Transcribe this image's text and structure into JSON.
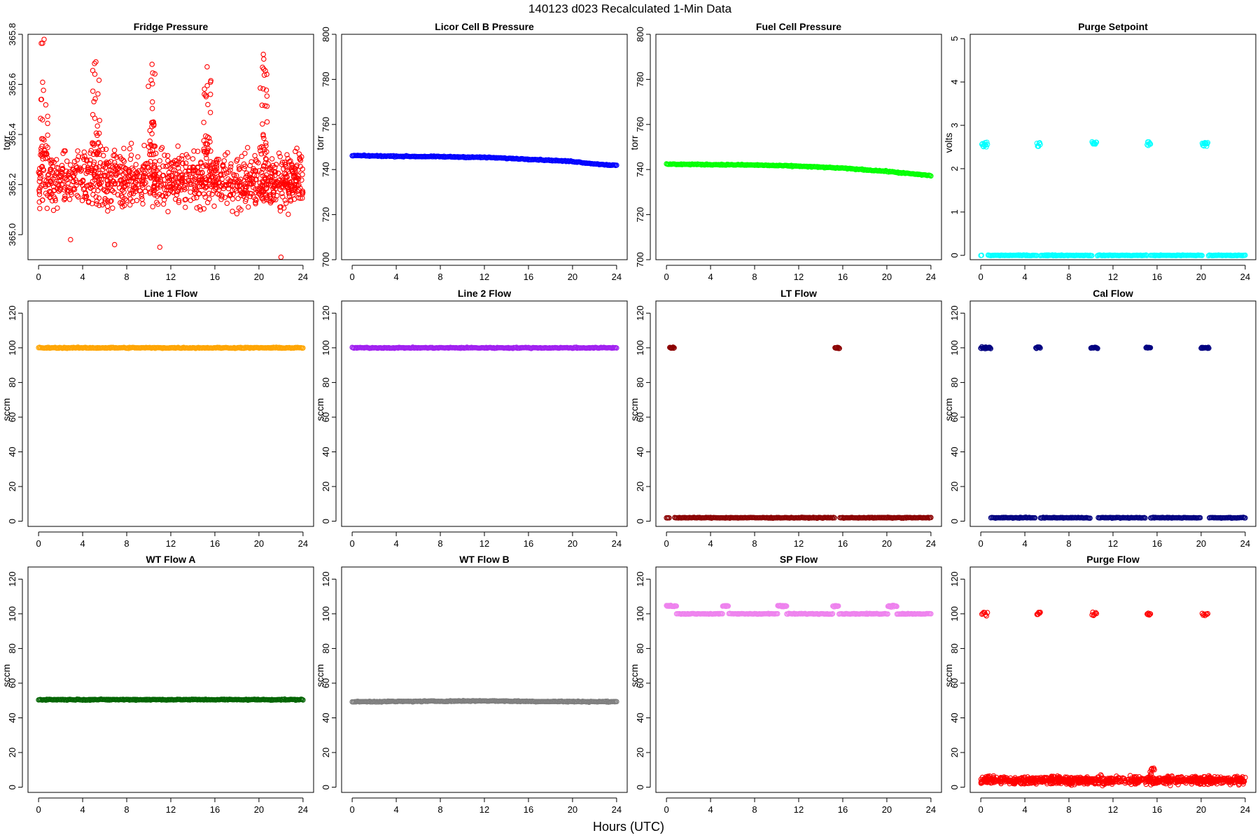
{
  "figure": {
    "title": "140123    d023    Recalculated 1-Min Data",
    "xlabel": "Hours (UTC)"
  },
  "chart_data": [
    {
      "type": "scatter",
      "title": "Fridge Pressure",
      "ylabel": "torr",
      "color": "#ff0000",
      "style": "noise",
      "xlim": [
        0,
        24
      ],
      "xticks": [
        0,
        4,
        8,
        12,
        16,
        20,
        24
      ],
      "ylim": [
        364.9,
        365.8
      ],
      "yticks": [
        365.0,
        365.2,
        365.4,
        365.6,
        365.8
      ],
      "ytick_labels": [
        "365.0",
        "365.2",
        "365.4",
        "365.6",
        "365.8"
      ],
      "base": 365.22,
      "spread": 0.1,
      "peaks": [
        {
          "x": 0.5,
          "y": 365.78
        },
        {
          "x": 5.2,
          "y": 365.69
        },
        {
          "x": 10.3,
          "y": 365.68
        },
        {
          "x": 15.3,
          "y": 365.67
        },
        {
          "x": 20.4,
          "y": 365.72
        }
      ],
      "outliers": [
        {
          "x": 22.0,
          "y": 364.91
        },
        {
          "x": 11.0,
          "y": 364.95
        },
        {
          "x": 6.9,
          "y": 364.96
        },
        {
          "x": 2.9,
          "y": 364.98
        }
      ]
    },
    {
      "type": "scatter",
      "title": "Licor Cell B Pressure",
      "ylabel": "torr",
      "color": "#0000ff",
      "style": "line",
      "xlim": [
        0,
        24
      ],
      "xticks": [
        0,
        4,
        8,
        12,
        16,
        20,
        24
      ],
      "ylim": [
        700,
        800
      ],
      "yticks": [
        700,
        720,
        740,
        760,
        780,
        800
      ],
      "ytick_labels": [
        "700",
        "720",
        "740",
        "760",
        "780",
        "800"
      ],
      "x": [
        0,
        4,
        8,
        12,
        16,
        20,
        22,
        24
      ],
      "y": [
        746.2,
        745.9,
        745.7,
        745.4,
        744.6,
        743.6,
        742.5,
        741.8
      ]
    },
    {
      "type": "scatter",
      "title": "Fuel Cell Pressure",
      "ylabel": "torr",
      "color": "#00ff00",
      "style": "line",
      "xlim": [
        0,
        24
      ],
      "xticks": [
        0,
        4,
        8,
        12,
        16,
        20,
        24
      ],
      "ylim": [
        700,
        800
      ],
      "yticks": [
        700,
        720,
        740,
        760,
        780,
        800
      ],
      "ytick_labels": [
        "700",
        "720",
        "740",
        "760",
        "780",
        "800"
      ],
      "x": [
        0,
        4,
        8,
        12,
        16,
        20,
        22,
        24
      ],
      "y": [
        742.4,
        742.2,
        742.0,
        741.5,
        740.6,
        739.2,
        738.2,
        737.3
      ]
    },
    {
      "type": "scatter",
      "title": "Purge Setpoint",
      "ylabel": "volts",
      "color": "#00ffff",
      "style": "base_spikes",
      "xlim": [
        0,
        24
      ],
      "xticks": [
        0,
        4,
        8,
        12,
        16,
        20,
        24
      ],
      "ylim": [
        -0.1,
        5.1
      ],
      "yticks": [
        0,
        1,
        2,
        3,
        4,
        5
      ],
      "ytick_labels": [
        "0",
        "1",
        "2",
        "3",
        "4",
        "5"
      ],
      "base": 0,
      "spike_value": 2.57,
      "spike_spread": 0.05,
      "spike_ranges": [
        [
          0.1,
          0.6
        ],
        [
          5.1,
          5.4
        ],
        [
          10.1,
          10.5
        ],
        [
          15.1,
          15.4
        ],
        [
          20.1,
          20.6
        ]
      ]
    },
    {
      "type": "scatter",
      "title": "Line 1 Flow",
      "ylabel": "sccm",
      "color": "#ffa500",
      "style": "line",
      "xlim": [
        0,
        24
      ],
      "xticks": [
        0,
        4,
        8,
        12,
        16,
        20,
        24
      ],
      "ylim": [
        -3,
        127
      ],
      "yticks": [
        0,
        20,
        40,
        60,
        80,
        100,
        120
      ],
      "ytick_labels": [
        "0",
        "20",
        "40",
        "60",
        "80",
        "100",
        "120"
      ],
      "x": [
        0,
        24
      ],
      "y": [
        100,
        100
      ]
    },
    {
      "type": "scatter",
      "title": "Line 2 Flow",
      "ylabel": "sccm",
      "color": "#a020f0",
      "style": "line",
      "xlim": [
        0,
        24
      ],
      "xticks": [
        0,
        4,
        8,
        12,
        16,
        20,
        24
      ],
      "ylim": [
        -3,
        127
      ],
      "yticks": [
        0,
        20,
        40,
        60,
        80,
        100,
        120
      ],
      "ytick_labels": [
        "0",
        "20",
        "40",
        "60",
        "80",
        "100",
        "120"
      ],
      "x": [
        0,
        24
      ],
      "y": [
        100,
        100
      ]
    },
    {
      "type": "scatter",
      "title": "LT Flow",
      "ylabel": "sccm",
      "color": "#8b0000",
      "style": "base_spikes",
      "xlim": [
        0,
        24
      ],
      "xticks": [
        0,
        4,
        8,
        12,
        16,
        20,
        24
      ],
      "ylim": [
        -3,
        127
      ],
      "yticks": [
        0,
        20,
        40,
        60,
        80,
        100,
        120
      ],
      "ytick_labels": [
        "0",
        "20",
        "40",
        "60",
        "80",
        "100",
        "120"
      ],
      "base": 2,
      "spike_value": 100,
      "spike_spread": 0.3,
      "spike_ranges": [
        [
          0.3,
          0.7
        ],
        [
          15.3,
          15.7
        ]
      ]
    },
    {
      "type": "scatter",
      "title": "Cal Flow",
      "ylabel": "sccm",
      "color": "#000080",
      "style": "base_spikes",
      "xlim": [
        0,
        24
      ],
      "xticks": [
        0,
        4,
        8,
        12,
        16,
        20,
        24
      ],
      "ylim": [
        -3,
        127
      ],
      "yticks": [
        0,
        20,
        40,
        60,
        80,
        100,
        120
      ],
      "ytick_labels": [
        "0",
        "20",
        "40",
        "60",
        "80",
        "100",
        "120"
      ],
      "base": 2,
      "spike_value": 100,
      "spike_spread": 0.3,
      "spike_ranges": [
        [
          0.0,
          0.9
        ],
        [
          5.0,
          5.4
        ],
        [
          10.0,
          10.6
        ],
        [
          15.0,
          15.4
        ],
        [
          20.0,
          20.7
        ]
      ]
    },
    {
      "type": "scatter",
      "title": "WT Flow A",
      "ylabel": "sccm",
      "color": "#006400",
      "style": "line",
      "xlim": [
        0,
        24
      ],
      "xticks": [
        0,
        4,
        8,
        12,
        16,
        20,
        24
      ],
      "ylim": [
        -3,
        127
      ],
      "yticks": [
        0,
        20,
        40,
        60,
        80,
        100,
        120
      ],
      "ytick_labels": [
        "0",
        "20",
        "40",
        "60",
        "80",
        "100",
        "120"
      ],
      "x": [
        0,
        24
      ],
      "y": [
        50.5,
        50.5
      ]
    },
    {
      "type": "scatter",
      "title": "WT Flow B",
      "ylabel": "sccm",
      "color": "#7f7f7f",
      "style": "line",
      "xlim": [
        0,
        24
      ],
      "xticks": [
        0,
        4,
        8,
        12,
        16,
        20,
        24
      ],
      "ylim": [
        -3,
        127
      ],
      "yticks": [
        0,
        20,
        40,
        60,
        80,
        100,
        120
      ],
      "ytick_labels": [
        "0",
        "20",
        "40",
        "60",
        "80",
        "100",
        "120"
      ],
      "x": [
        0,
        8,
        12,
        16,
        24
      ],
      "y": [
        49.3,
        49.6,
        49.8,
        49.5,
        49.3
      ]
    },
    {
      "type": "scatter",
      "title": "SP Flow",
      "ylabel": "sccm",
      "color": "#ee82ee",
      "style": "base_spikes",
      "xlim": [
        0,
        24
      ],
      "xticks": [
        0,
        4,
        8,
        12,
        16,
        20,
        24
      ],
      "ylim": [
        -3,
        127
      ],
      "yticks": [
        0,
        20,
        40,
        60,
        80,
        100,
        120
      ],
      "ytick_labels": [
        "0",
        "20",
        "40",
        "60",
        "80",
        "100",
        "120"
      ],
      "base": 100,
      "spike_value": 104.5,
      "spike_spread": 0.3,
      "spike_ranges": [
        [
          0.0,
          0.9
        ],
        [
          5.1,
          5.6
        ],
        [
          10.1,
          10.9
        ],
        [
          15.1,
          15.6
        ],
        [
          20.1,
          20.9
        ]
      ]
    },
    {
      "type": "scatter",
      "title": "Purge Flow",
      "ylabel": "sccm",
      "color": "#ff0000",
      "style": "noise_spikes",
      "xlim": [
        0,
        24
      ],
      "xticks": [
        0,
        4,
        8,
        12,
        16,
        20,
        24
      ],
      "ylim": [
        -3,
        127
      ],
      "yticks": [
        0,
        20,
        40,
        60,
        80,
        100,
        120
      ],
      "ytick_labels": [
        "0",
        "20",
        "40",
        "60",
        "80",
        "100",
        "120"
      ],
      "base": 4,
      "spread": 1.6,
      "spike_value": 100,
      "spike_spread": 0.8,
      "spike_ranges": [
        [
          0.1,
          0.6
        ],
        [
          5.1,
          5.4
        ],
        [
          10.1,
          10.5
        ],
        [
          15.1,
          15.4
        ],
        [
          20.1,
          20.6
        ]
      ]
    }
  ]
}
